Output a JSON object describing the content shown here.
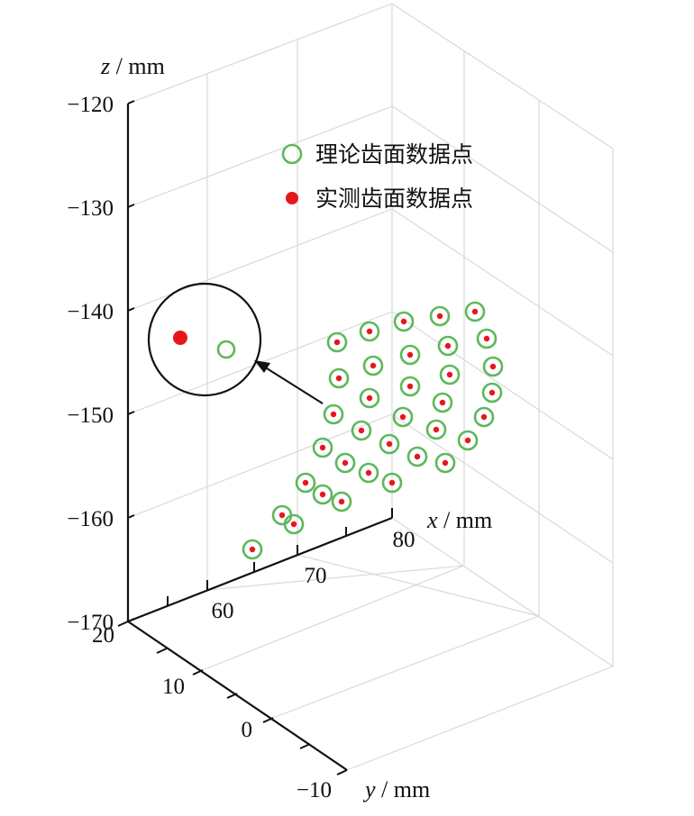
{
  "chart_data": {
    "type": "scatter",
    "projection": "3d",
    "axes": {
      "x": {
        "var": "x",
        "unit": " / mm",
        "ticks": [
          "60",
          "70",
          "80"
        ]
      },
      "y": {
        "var": "y",
        "unit": " / mm",
        "ticks": [
          "20",
          "10",
          "0",
          "−10"
        ]
      },
      "z": {
        "var": "z",
        "unit": " / mm",
        "ticks": [
          "−120",
          "−130",
          "−140",
          "−150",
          "−160",
          "−170"
        ],
        "range": [
          -170,
          -120
        ]
      }
    },
    "grid": true,
    "legend_position": "top-right",
    "series": [
      {
        "name": "理论齿面数据点",
        "marker": "open-circle",
        "color": "#5db85a"
      },
      {
        "name": "实测齿面数据点",
        "marker": "filled-dot",
        "color": "#e8161c"
      }
    ],
    "zoom_inset": {
      "description_markers": [
        "filled-dot",
        "open-circle"
      ],
      "has_arrow": true
    },
    "point_count": 40
  }
}
